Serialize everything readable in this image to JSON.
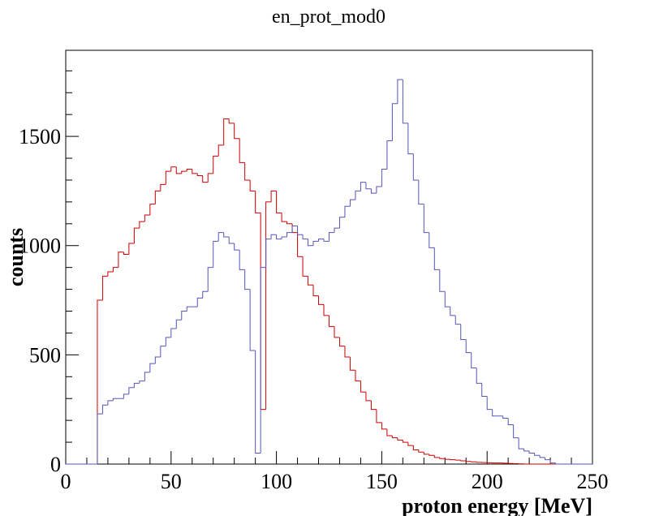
{
  "chart_data": {
    "type": "histogram",
    "title": "en_prot_mod0",
    "x_label": "proton energy [MeV]",
    "y_label": "counts",
    "bins": [
      0,
      2.5,
      5,
      7.5,
      10,
      12.5,
      15,
      17.5,
      20,
      22.5,
      25,
      27.5,
      30,
      32.5,
      35,
      37.5,
      40,
      42.5,
      45,
      47.5,
      50,
      52.5,
      55,
      57.5,
      60,
      62.5,
      65,
      67.5,
      70,
      72.5,
      75,
      77.5,
      80,
      82.5,
      85,
      87.5,
      90,
      92.5,
      95,
      97.5,
      100,
      102.5,
      105,
      107.5,
      110,
      112.5,
      115,
      117.5,
      120,
      122.5,
      125,
      127.5,
      130,
      132.5,
      135,
      137.5,
      140,
      142.5,
      145,
      147.5,
      150,
      152.5,
      155,
      157.5,
      160,
      162.5,
      165,
      167.5,
      170,
      172.5,
      175,
      177.5,
      180,
      182.5,
      185,
      187.5,
      190,
      192.5,
      195,
      197.5,
      200,
      202.5,
      205,
      207.5,
      210,
      212.5,
      215,
      217.5,
      220,
      222.5,
      225,
      227.5,
      230,
      232.5,
      235,
      237.5,
      240,
      242.5,
      245,
      247.5,
      250
    ],
    "series": [
      {
        "color": "#cc0000",
        "values": [
          0,
          0,
          0,
          0,
          0,
          0,
          750,
          860,
          880,
          900,
          970,
          960,
          1010,
          1080,
          1110,
          1140,
          1190,
          1250,
          1280,
          1340,
          1360,
          1330,
          1340,
          1350,
          1330,
          1320,
          1290,
          1330,
          1410,
          1460,
          1580,
          1560,
          1490,
          1380,
          1300,
          1250,
          1150,
          250,
          1200,
          1250,
          1150,
          1110,
          1100,
          1060,
          950,
          860,
          820,
          770,
          730,
          680,
          630,
          580,
          540,
          490,
          430,
          380,
          330,
          290,
          250,
          190,
          160,
          130,
          120,
          110,
          100,
          85,
          65,
          55,
          45,
          40,
          30,
          25,
          22,
          20,
          18,
          15,
          12,
          10,
          8,
          7,
          6,
          5,
          5,
          4,
          3,
          2,
          1,
          0,
          0,
          0,
          0,
          0,
          0,
          0,
          0,
          0,
          0,
          0,
          0,
          0
        ]
      },
      {
        "color": "#5555bb",
        "values": [
          0,
          0,
          0,
          0,
          0,
          0,
          230,
          270,
          290,
          300,
          300,
          320,
          350,
          370,
          380,
          420,
          460,
          490,
          540,
          580,
          620,
          660,
          700,
          720,
          720,
          760,
          790,
          900,
          1020,
          1060,
          1040,
          1010,
          980,
          890,
          800,
          520,
          50,
          900,
          1030,
          1050,
          1030,
          1040,
          1060,
          1090,
          1050,
          1030,
          1000,
          1020,
          1030,
          1020,
          1060,
          1080,
          1130,
          1180,
          1210,
          1250,
          1290,
          1260,
          1240,
          1270,
          1350,
          1480,
          1650,
          1760,
          1560,
          1420,
          1300,
          1190,
          1060,
          990,
          890,
          790,
          720,
          680,
          640,
          570,
          510,
          440,
          370,
          310,
          250,
          220,
          220,
          210,
          180,
          120,
          70,
          60,
          50,
          40,
          30,
          20,
          5,
          0,
          0,
          0,
          0,
          0,
          0,
          0
        ]
      }
    ],
    "xlim": [
      0,
      250
    ],
    "xticks": [
      0,
      50,
      100,
      150,
      200,
      250
    ],
    "ylim": [
      0,
      1894
    ],
    "yticks": [
      0,
      500,
      1000,
      1500
    ]
  }
}
